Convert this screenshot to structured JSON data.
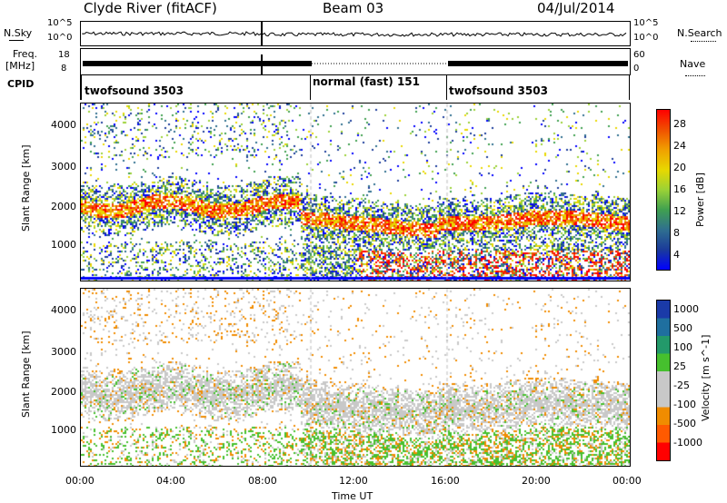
{
  "header": {
    "station": "Clyde River (fitACF)",
    "beam": "Beam 03",
    "date": "04/Jul/2014"
  },
  "noise_panel": {
    "left_label": "N.Sky",
    "right_label": "N.Search",
    "left_ticks": [
      "10^5",
      "10^0"
    ],
    "right_ticks": [
      "10^5",
      "10^0"
    ]
  },
  "freq_panel": {
    "left_label_1": "Freq.",
    "left_label_2": "[MHz]",
    "right_label": "Nave",
    "left_ticks": [
      "18",
      "8"
    ],
    "right_ticks": [
      "60",
      "0"
    ]
  },
  "cpid_panel": {
    "label": "CPID",
    "segments": [
      {
        "name": "twofsound 3503",
        "start_hour": 0,
        "end_hour": 10
      },
      {
        "name": "normal (fast) 151",
        "start_hour": 10,
        "end_hour": 16
      },
      {
        "name": "twofsound 3503",
        "start_hour": 16,
        "end_hour": 24
      }
    ]
  },
  "chart_data": [
    {
      "type": "heatmap",
      "name": "power",
      "ylabel": "Slant Range [km]",
      "yticks": [
        1000,
        2000,
        3000,
        4000
      ],
      "ylim": [
        180,
        4600
      ],
      "colorbar_label": "Power [dB]",
      "colorbar_ticks": [
        "28",
        "24",
        "20",
        "16",
        "12",
        "8",
        "4"
      ],
      "colorbar_colors": [
        "#ff0000",
        "#f05000",
        "#f0a000",
        "#e8d800",
        "#9bd236",
        "#40a050",
        "#2f6f8f",
        "#1b3b9a",
        "#0000ff"
      ]
    },
    {
      "type": "heatmap",
      "name": "velocity",
      "ylabel": "Slant Range [km]",
      "yticks": [
        1000,
        2000,
        3000,
        4000
      ],
      "ylim": [
        180,
        4600
      ],
      "colorbar_label": "Velocity [m s^-1]",
      "colorbar_ticks": [
        "1000",
        "500",
        "100",
        "25",
        "-25",
        "-100",
        "-500",
        "-1000"
      ],
      "colorbar_colors": [
        "#1a3aa8",
        "#1f6f9f",
        "#23996a",
        "#46c02e",
        "#c8c8c8",
        "#c8c8c8",
        "#f08c00",
        "#ff5a00",
        "#ff0000"
      ]
    }
  ],
  "xaxis": {
    "label": "Time UT",
    "ticks": [
      "00:00",
      "04:00",
      "08:00",
      "12:00",
      "16:00",
      "20:00",
      "00:00"
    ]
  }
}
